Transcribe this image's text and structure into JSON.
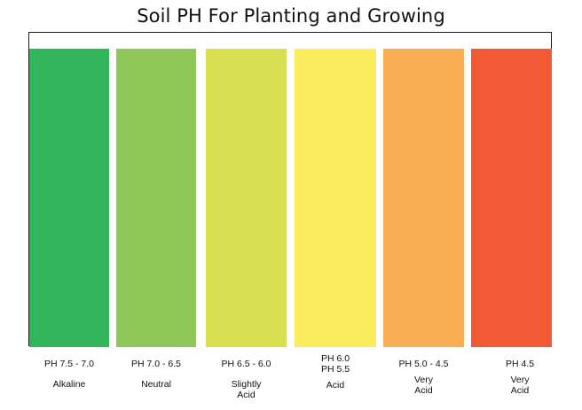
{
  "title": "Soil PH For Planting and Growing",
  "bands": [
    {
      "ph": "PH 7.5 - 7.0",
      "desc": "Alkaline",
      "color": "#33b65b"
    },
    {
      "ph": "PH 7.0 - 6.5",
      "desc": "Neutral",
      "color": "#8fc758"
    },
    {
      "ph": "PH 6.5 - 6.0",
      "desc": "Slightly\nAcid",
      "color": "#d7e051"
    },
    {
      "ph": "PH 6.0\nPH 5.5",
      "desc": "Acid",
      "color": "#fbec5d"
    },
    {
      "ph": "PH 5.0 - 4.5",
      "desc": "Very\nAcid",
      "color": "#f9ae53"
    },
    {
      "ph": "PH 4.5",
      "desc": "Very\nAcid",
      "color": "#f15a35"
    }
  ]
}
